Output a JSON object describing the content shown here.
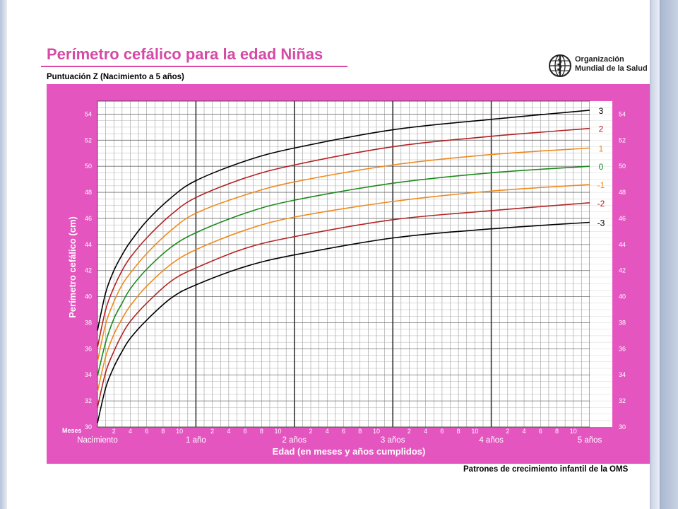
{
  "title": "Perímetro cefálico para la edad  Niñas",
  "subtitle": "Puntuación Z (Nacimiento a 5 años)",
  "logo": {
    "line1": "Organización",
    "line2": "Mundial de la Salud"
  },
  "footer": "Patrones de crecimiento infantil de la OMS",
  "colors": {
    "band": "#e455c0",
    "title": "#d64aa6",
    "z3": "#000000",
    "z2": "#b32222",
    "z1": "#ee8a1c",
    "z0": "#1d8a1d"
  },
  "chart_data": {
    "type": "line",
    "ylabel": "Perímetro cefálico (cm)",
    "xlabel": "Edad (en meses y años cumplidos)",
    "months_label": "Meses",
    "xlim": [
      0,
      60
    ],
    "ylim": [
      30,
      55
    ],
    "y_ticks": [
      30,
      32,
      34,
      36,
      38,
      40,
      42,
      44,
      46,
      48,
      50,
      52,
      54
    ],
    "x_month_ticks": [
      "2",
      "4",
      "6",
      "8",
      "10"
    ],
    "x_year_labels": [
      "Nacimiento",
      "1 año",
      "2 años",
      "3 años",
      "4 años",
      "5 años"
    ],
    "grid": true,
    "x": [
      0,
      1,
      2,
      3,
      4,
      6,
      9,
      12,
      18,
      24,
      36,
      48,
      60
    ],
    "series": [
      {
        "name": "3",
        "color": "#000000",
        "values": [
          37.4,
          40.3,
          42.0,
          43.2,
          44.2,
          45.8,
          47.6,
          48.9,
          50.4,
          51.4,
          52.8,
          53.6,
          54.3
        ]
      },
      {
        "name": "2",
        "color": "#b32222",
        "values": [
          36.1,
          39.0,
          40.7,
          42.0,
          43.0,
          44.5,
          46.3,
          47.6,
          49.1,
          50.1,
          51.5,
          52.3,
          52.9
        ]
      },
      {
        "name": "1",
        "color": "#ee8a1c",
        "values": [
          35.0,
          37.9,
          39.6,
          40.9,
          41.8,
          43.3,
          45.1,
          46.4,
          47.8,
          48.8,
          50.1,
          50.9,
          51.4
        ]
      },
      {
        "name": "0",
        "color": "#1d8a1d",
        "values": [
          33.9,
          36.5,
          38.3,
          39.5,
          40.6,
          42.1,
          43.8,
          44.9,
          46.4,
          47.4,
          48.7,
          49.5,
          50.0
        ]
      },
      {
        "name": "-1",
        "color": "#ee8a1c",
        "values": [
          32.7,
          35.4,
          37.1,
          38.3,
          39.3,
          40.8,
          42.5,
          43.6,
          45.1,
          46.1,
          47.3,
          48.1,
          48.6
        ]
      },
      {
        "name": "-2",
        "color": "#b32222",
        "values": [
          31.5,
          34.2,
          35.8,
          37.1,
          38.1,
          39.5,
          41.2,
          42.2,
          43.7,
          44.6,
          45.9,
          46.6,
          47.2
        ]
      },
      {
        "name": "-3",
        "color": "#000000",
        "values": [
          30.3,
          33.0,
          34.6,
          35.8,
          36.8,
          38.2,
          39.9,
          40.9,
          42.3,
          43.2,
          44.5,
          45.2,
          45.7
        ]
      }
    ]
  }
}
